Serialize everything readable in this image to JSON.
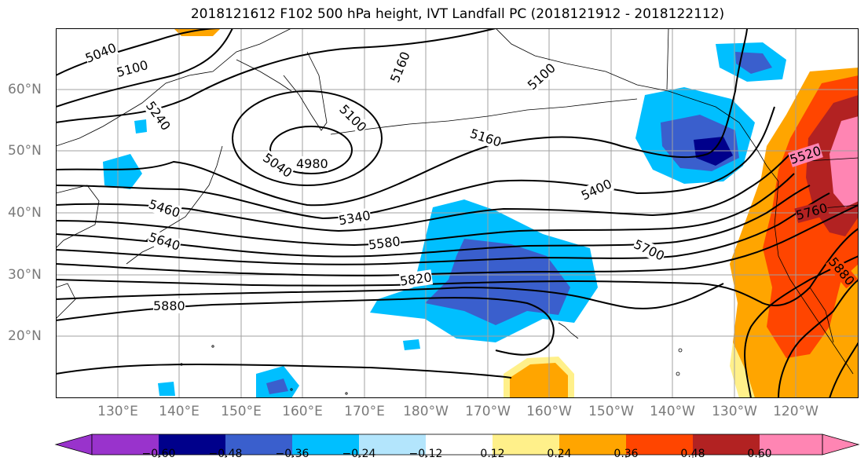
{
  "title": "2018121612 F102 500 hPa height, IVT Landfall PC (2018121912 - 2018122112)",
  "map": {
    "lat_labels": [
      "60°N",
      "50°N",
      "40°N",
      "30°N",
      "20°N"
    ],
    "lon_labels": [
      "130°E",
      "140°E",
      "150°E",
      "160°E",
      "170°E",
      "180°W",
      "170°W",
      "160°W",
      "150°W",
      "140°W",
      "130°W",
      "120°W"
    ],
    "contour_labels": [
      "5040",
      "5100",
      "5160",
      "5100",
      "5100",
      "5240",
      "5040",
      "4980",
      "5160",
      "5400",
      "5340",
      "5460",
      "5580",
      "5640",
      "5700",
      "5820",
      "5880",
      "5520",
      "5760",
      "5880"
    ],
    "colors": {
      "neg_060": "#9933cc",
      "neg_048": "#00008b",
      "neg_036": "#3a5fcd",
      "neg_024": "#00bfff",
      "neg_012": "#b3e5fc",
      "neutral": "#ffffff",
      "pos_012": "#fff08a",
      "pos_024": "#ffa500",
      "pos_036": "#ff4500",
      "pos_048": "#b22222",
      "pos_060": "#ff85b3"
    }
  },
  "colorbar": {
    "tick_labels": [
      "−0.60",
      "−0.48",
      "−0.36",
      "−0.24",
      "−0.12",
      "0.12",
      "0.24",
      "0.36",
      "0.48",
      "0.60"
    ]
  }
}
